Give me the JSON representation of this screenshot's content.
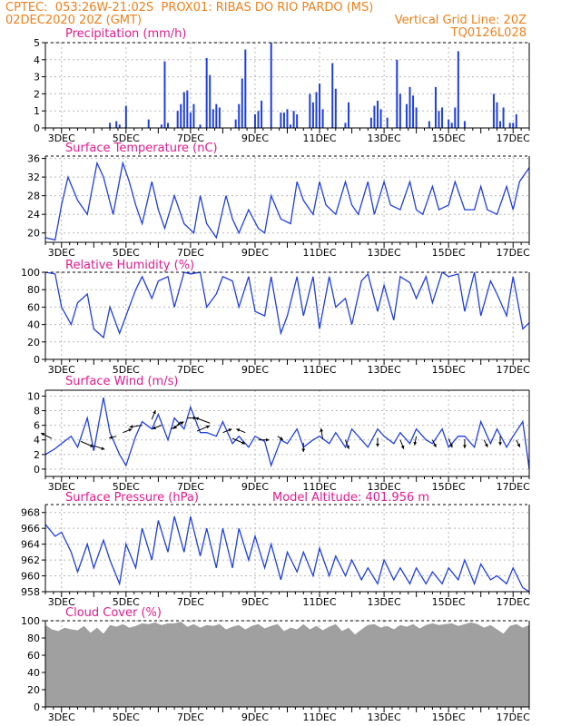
{
  "header": {
    "line1_left": "CPTEC:  053:26W-21:02S  PROX01: RIBAS DO RIO PARDO (MS)",
    "line2_left": "02DEC2020 20Z (GMT)",
    "line2_right": "Vertical Grid Line: 20Z",
    "line3_right": "TQ0126L028"
  },
  "colors": {
    "header": "#ef7f1a",
    "panel_title": "#e21a8c",
    "series": "#1f3fe0",
    "cloud": "#a0a0a0",
    "wind_arrow": "#000000",
    "grid": "#b8b8b8"
  },
  "chart_data": [
    {
      "type": "bar",
      "title": "Precipitation (mm/h)",
      "xlabel": "",
      "ylabel": "",
      "x_unit": "days from 02DEC2020 20Z",
      "xlim": [
        0,
        15
      ],
      "ylim": [
        0,
        5
      ],
      "yticks": [
        0,
        1,
        2,
        3,
        4,
        5
      ],
      "xticks": [
        "3DEC",
        "5DEC",
        "7DEC",
        "9DEC",
        "11DEC",
        "13DEC",
        "15DEC",
        "17DEC"
      ],
      "grid": true,
      "x": [
        2.0,
        2.2,
        2.3,
        2.5,
        3.2,
        3.6,
        3.7,
        3.8,
        4.1,
        4.2,
        4.3,
        4.4,
        4.5,
        4.6,
        4.8,
        5.0,
        5.1,
        5.2,
        5.3,
        5.4,
        5.9,
        6.0,
        6.1,
        6.2,
        6.5,
        6.6,
        6.7,
        7.0,
        7.3,
        7.4,
        7.5,
        7.6,
        7.7,
        7.8,
        8.2,
        8.3,
        8.4,
        8.5,
        8.6,
        8.9,
        9.0,
        9.3,
        9.4,
        10.1,
        10.2,
        10.3,
        10.4,
        10.6,
        10.9,
        11.0,
        11.2,
        11.3,
        11.4,
        11.5,
        11.9,
        12.1,
        12.2,
        12.3,
        12.5,
        12.6,
        12.7,
        12.8,
        13.0,
        13.9,
        14.0,
        14.1,
        14.2,
        14.4,
        14.5,
        14.6
      ],
      "values": [
        0.3,
        0.4,
        0.2,
        1.3,
        0.5,
        0.2,
        3.9,
        0.3,
        1.0,
        1.4,
        2.1,
        2.2,
        0.9,
        1.4,
        0.2,
        4.1,
        3.1,
        1.1,
        1.4,
        1.2,
        0.5,
        1.4,
        2.9,
        4.6,
        0.8,
        1.0,
        1.6,
        5.0,
        0.9,
        0.9,
        1.1,
        0.2,
        1.0,
        0.8,
        2.0,
        1.5,
        2.1,
        2.6,
        1.1,
        3.8,
        2.3,
        0.3,
        1.5,
        0.6,
        1.3,
        1.6,
        1.1,
        0.6,
        4.0,
        2.0,
        1.4,
        2.4,
        1.9,
        1.2,
        0.4,
        2.4,
        1.0,
        1.2,
        0.5,
        0.3,
        1.2,
        4.5,
        0.4,
        2.0,
        1.5,
        0.4,
        1.2,
        0.3,
        0.3,
        0.8
      ]
    },
    {
      "type": "line",
      "title": "Surface Temperature (nC)",
      "xlabel": "",
      "ylabel": "",
      "x_unit": "days from 02DEC2020 20Z",
      "xlim": [
        0,
        15
      ],
      "ylim": [
        18,
        36.5
      ],
      "yticks": [
        20,
        24,
        28,
        32,
        36
      ],
      "xticks": [
        "3DEC",
        "5DEC",
        "7DEC",
        "9DEC",
        "11DEC",
        "13DEC",
        "15DEC",
        "17DEC"
      ],
      "grid": true,
      "x": [
        0,
        0.3,
        0.5,
        0.7,
        1.0,
        1.3,
        1.6,
        1.8,
        2.1,
        2.4,
        2.6,
        2.8,
        3.0,
        3.3,
        3.5,
        3.7,
        4.0,
        4.3,
        4.6,
        4.8,
        5.0,
        5.3,
        5.6,
        5.8,
        6.0,
        6.3,
        6.6,
        6.8,
        7.0,
        7.3,
        7.6,
        7.8,
        8.0,
        8.3,
        8.5,
        8.7,
        9.0,
        9.3,
        9.5,
        9.7,
        10.0,
        10.2,
        10.5,
        10.7,
        11.0,
        11.3,
        11.5,
        11.7,
        12.0,
        12.2,
        12.5,
        12.7,
        13.0,
        13.3,
        13.5,
        13.7,
        14.0,
        14.3,
        14.5,
        14.7,
        15.0
      ],
      "values": [
        19,
        18.5,
        26,
        32,
        27,
        24,
        35,
        32,
        24,
        35,
        31,
        26,
        22,
        31,
        25,
        21,
        28,
        22,
        20,
        28,
        22,
        19,
        28,
        23,
        20,
        25,
        21,
        20,
        28,
        23,
        22,
        31,
        27,
        24,
        31,
        26,
        24,
        31,
        26,
        24,
        31,
        24,
        31,
        26,
        25,
        31,
        25,
        24,
        30,
        25,
        26,
        31,
        25,
        25,
        30,
        25,
        24,
        30,
        25,
        31,
        34
      ]
    },
    {
      "type": "line",
      "title": "Relative Humidity (%)",
      "xlabel": "",
      "ylabel": "",
      "x_unit": "days from 02DEC2020 20Z",
      "xlim": [
        0,
        15
      ],
      "ylim": [
        0,
        100
      ],
      "yticks": [
        0,
        20,
        40,
        60,
        80,
        100
      ],
      "xticks": [
        "3DEC",
        "5DEC",
        "7DEC",
        "9DEC",
        "11DEC",
        "13DEC",
        "15DEC",
        "17DEC"
      ],
      "grid": true,
      "x": [
        0,
        0.3,
        0.5,
        0.8,
        1.0,
        1.3,
        1.5,
        1.8,
        2.0,
        2.3,
        2.5,
        2.8,
        3.0,
        3.3,
        3.5,
        3.8,
        4.0,
        4.3,
        4.5,
        4.8,
        5.0,
        5.3,
        5.5,
        5.8,
        6.0,
        6.3,
        6.5,
        6.8,
        7.0,
        7.3,
        7.5,
        7.8,
        8.0,
        8.3,
        8.5,
        8.8,
        9.0,
        9.3,
        9.5,
        9.8,
        10.0,
        10.3,
        10.5,
        10.8,
        11.0,
        11.3,
        11.5,
        11.8,
        12.0,
        12.3,
        12.5,
        12.8,
        13.0,
        13.3,
        13.5,
        13.8,
        14.0,
        14.3,
        14.5,
        14.8,
        15.0
      ],
      "values": [
        100,
        98,
        60,
        40,
        65,
        75,
        35,
        25,
        60,
        30,
        50,
        80,
        95,
        70,
        90,
        95,
        60,
        100,
        98,
        100,
        60,
        75,
        95,
        90,
        60,
        95,
        55,
        50,
        95,
        30,
        50,
        95,
        50,
        95,
        35,
        95,
        60,
        70,
        40,
        90,
        98,
        55,
        85,
        45,
        95,
        88,
        70,
        95,
        65,
        100,
        95,
        98,
        55,
        100,
        50,
        90,
        75,
        50,
        95,
        35,
        42
      ]
    },
    {
      "type": "line",
      "title": "Surface Wind (m/s)",
      "xlabel": "",
      "ylabel": "",
      "x_unit": "days from 02DEC2020 20Z",
      "xlim": [
        0,
        15
      ],
      "ylim": [
        -1,
        10.8
      ],
      "yticks": [
        0,
        2,
        4,
        6,
        8,
        10
      ],
      "xticks": [
        "3DEC",
        "5DEC",
        "7DEC",
        "9DEC",
        "11DEC",
        "13DEC",
        "15DEC",
        "17DEC"
      ],
      "grid": true,
      "x": [
        0,
        0.3,
        0.5,
        0.8,
        1.0,
        1.3,
        1.5,
        1.8,
        2.0,
        2.3,
        2.5,
        2.8,
        3.0,
        3.3,
        3.5,
        3.8,
        4.0,
        4.3,
        4.5,
        4.8,
        5.0,
        5.3,
        5.5,
        5.8,
        6.0,
        6.3,
        6.5,
        6.8,
        7.0,
        7.3,
        7.5,
        7.8,
        8.0,
        8.3,
        8.5,
        8.8,
        9.0,
        9.3,
        9.5,
        9.8,
        10.0,
        10.3,
        10.5,
        10.8,
        11.0,
        11.3,
        11.5,
        11.8,
        12.0,
        12.3,
        12.5,
        12.8,
        13.0,
        13.3,
        13.5,
        13.8,
        14.0,
        14.3,
        14.5,
        14.8,
        15.0
      ],
      "values": [
        2.0,
        2.8,
        3.5,
        4.5,
        3.0,
        7.0,
        2.5,
        9.8,
        5.0,
        2.0,
        0.5,
        4.5,
        6.5,
        5.5,
        7.5,
        4.0,
        7.0,
        5.5,
        8.5,
        5.0,
        5.0,
        4.5,
        6.5,
        3.5,
        4.5,
        3.0,
        4.5,
        3.8,
        0.5,
        4.0,
        3.5,
        5.5,
        3.0,
        4.0,
        4.5,
        3.5,
        5.0,
        3.0,
        5.5,
        4.0,
        3.0,
        5.5,
        4.5,
        3.5,
        5.0,
        3.5,
        5.5,
        4.0,
        3.5,
        5.5,
        3.0,
        4.5,
        4.5,
        3.0,
        6.5,
        3.5,
        5.5,
        3.0,
        4.5,
        6.5,
        0.0
      ]
    },
    {
      "type": "line",
      "title": "Surface Pressure (hPa)",
      "subtitle": "Model Altitude: 401.956 m",
      "xlabel": "",
      "ylabel": "",
      "x_unit": "days from 02DEC2020 20Z",
      "xlim": [
        0,
        15
      ],
      "ylim": [
        958,
        969
      ],
      "yticks": [
        958,
        960,
        962,
        964,
        966,
        968
      ],
      "xticks": [
        "3DEC",
        "5DEC",
        "7DEC",
        "9DEC",
        "11DEC",
        "13DEC",
        "15DEC",
        "17DEC"
      ],
      "grid": true,
      "x": [
        0,
        0.3,
        0.5,
        0.8,
        1.0,
        1.3,
        1.5,
        1.8,
        2.0,
        2.3,
        2.5,
        2.8,
        3.0,
        3.3,
        3.5,
        3.8,
        4.0,
        4.3,
        4.5,
        4.8,
        5.0,
        5.3,
        5.5,
        5.8,
        6.0,
        6.3,
        6.5,
        6.8,
        7.0,
        7.3,
        7.5,
        7.8,
        8.0,
        8.3,
        8.5,
        8.8,
        9.0,
        9.3,
        9.5,
        9.8,
        10.0,
        10.3,
        10.5,
        10.8,
        11.0,
        11.3,
        11.5,
        11.8,
        12.0,
        12.3,
        12.5,
        12.8,
        13.0,
        13.3,
        13.5,
        13.8,
        14.0,
        14.3,
        14.5,
        14.8,
        15.0
      ],
      "values": [
        966.5,
        965,
        965.5,
        963,
        960.5,
        964,
        961,
        964.5,
        962,
        959,
        964,
        961,
        966,
        962,
        967,
        963,
        967.5,
        963,
        967.5,
        962.5,
        966,
        961,
        966,
        961,
        966,
        962,
        965,
        961,
        964,
        959.5,
        963,
        960.5,
        963,
        960,
        963.5,
        960,
        962.5,
        960,
        962,
        959.5,
        961,
        959,
        962,
        959.5,
        961,
        959,
        961,
        959,
        960.5,
        959,
        961,
        959.5,
        962,
        959,
        961.5,
        959.5,
        960,
        959,
        961,
        958.5,
        958
      ]
    },
    {
      "type": "area",
      "title": "Cloud Cover (%)",
      "xlabel": "",
      "ylabel": "",
      "x_unit": "days from 02DEC2020 20Z",
      "xlim": [
        0,
        15
      ],
      "ylim": [
        0,
        100
      ],
      "yticks": [
        0,
        20,
        40,
        60,
        80,
        100
      ],
      "xticks": [
        "3DEC",
        "5DEC",
        "7DEC",
        "9DEC",
        "11DEC",
        "13DEC",
        "15DEC",
        "17DEC"
      ],
      "grid": true,
      "x": [
        0,
        0.2,
        0.4,
        0.6,
        0.8,
        1.0,
        1.2,
        1.4,
        1.6,
        1.8,
        2.0,
        2.2,
        2.4,
        2.6,
        2.8,
        3.0,
        3.2,
        3.4,
        3.6,
        3.8,
        4.0,
        4.2,
        4.4,
        4.6,
        4.8,
        5.0,
        5.2,
        5.4,
        5.6,
        5.8,
        6.0,
        6.2,
        6.4,
        6.6,
        6.8,
        7.0,
        7.2,
        7.4,
        7.6,
        7.8,
        8.0,
        8.2,
        8.4,
        8.6,
        8.8,
        9.0,
        9.2,
        9.4,
        9.6,
        9.8,
        10.0,
        10.2,
        10.4,
        10.6,
        10.8,
        11.0,
        11.2,
        11.4,
        11.6,
        11.8,
        12.0,
        12.2,
        12.4,
        12.6,
        12.8,
        13.0,
        13.2,
        13.4,
        13.6,
        13.8,
        14.0,
        14.2,
        14.4,
        14.6,
        14.8,
        15.0
      ],
      "values": [
        95,
        90,
        88,
        92,
        90,
        89,
        94,
        86,
        92,
        85,
        95,
        93,
        96,
        92,
        94,
        97,
        96,
        98,
        95,
        97,
        97,
        99,
        93,
        96,
        92,
        95,
        94,
        96,
        90,
        93,
        95,
        90,
        94,
        96,
        91,
        94,
        96,
        88,
        92,
        90,
        96,
        90,
        94,
        89,
        93,
        96,
        88,
        92,
        84,
        90,
        95,
        96,
        92,
        94,
        90,
        95,
        93,
        96,
        91,
        95,
        97,
        95,
        96,
        97,
        94,
        96,
        98,
        96,
        92,
        95,
        90,
        85,
        94,
        96,
        92,
        95
      ]
    }
  ]
}
